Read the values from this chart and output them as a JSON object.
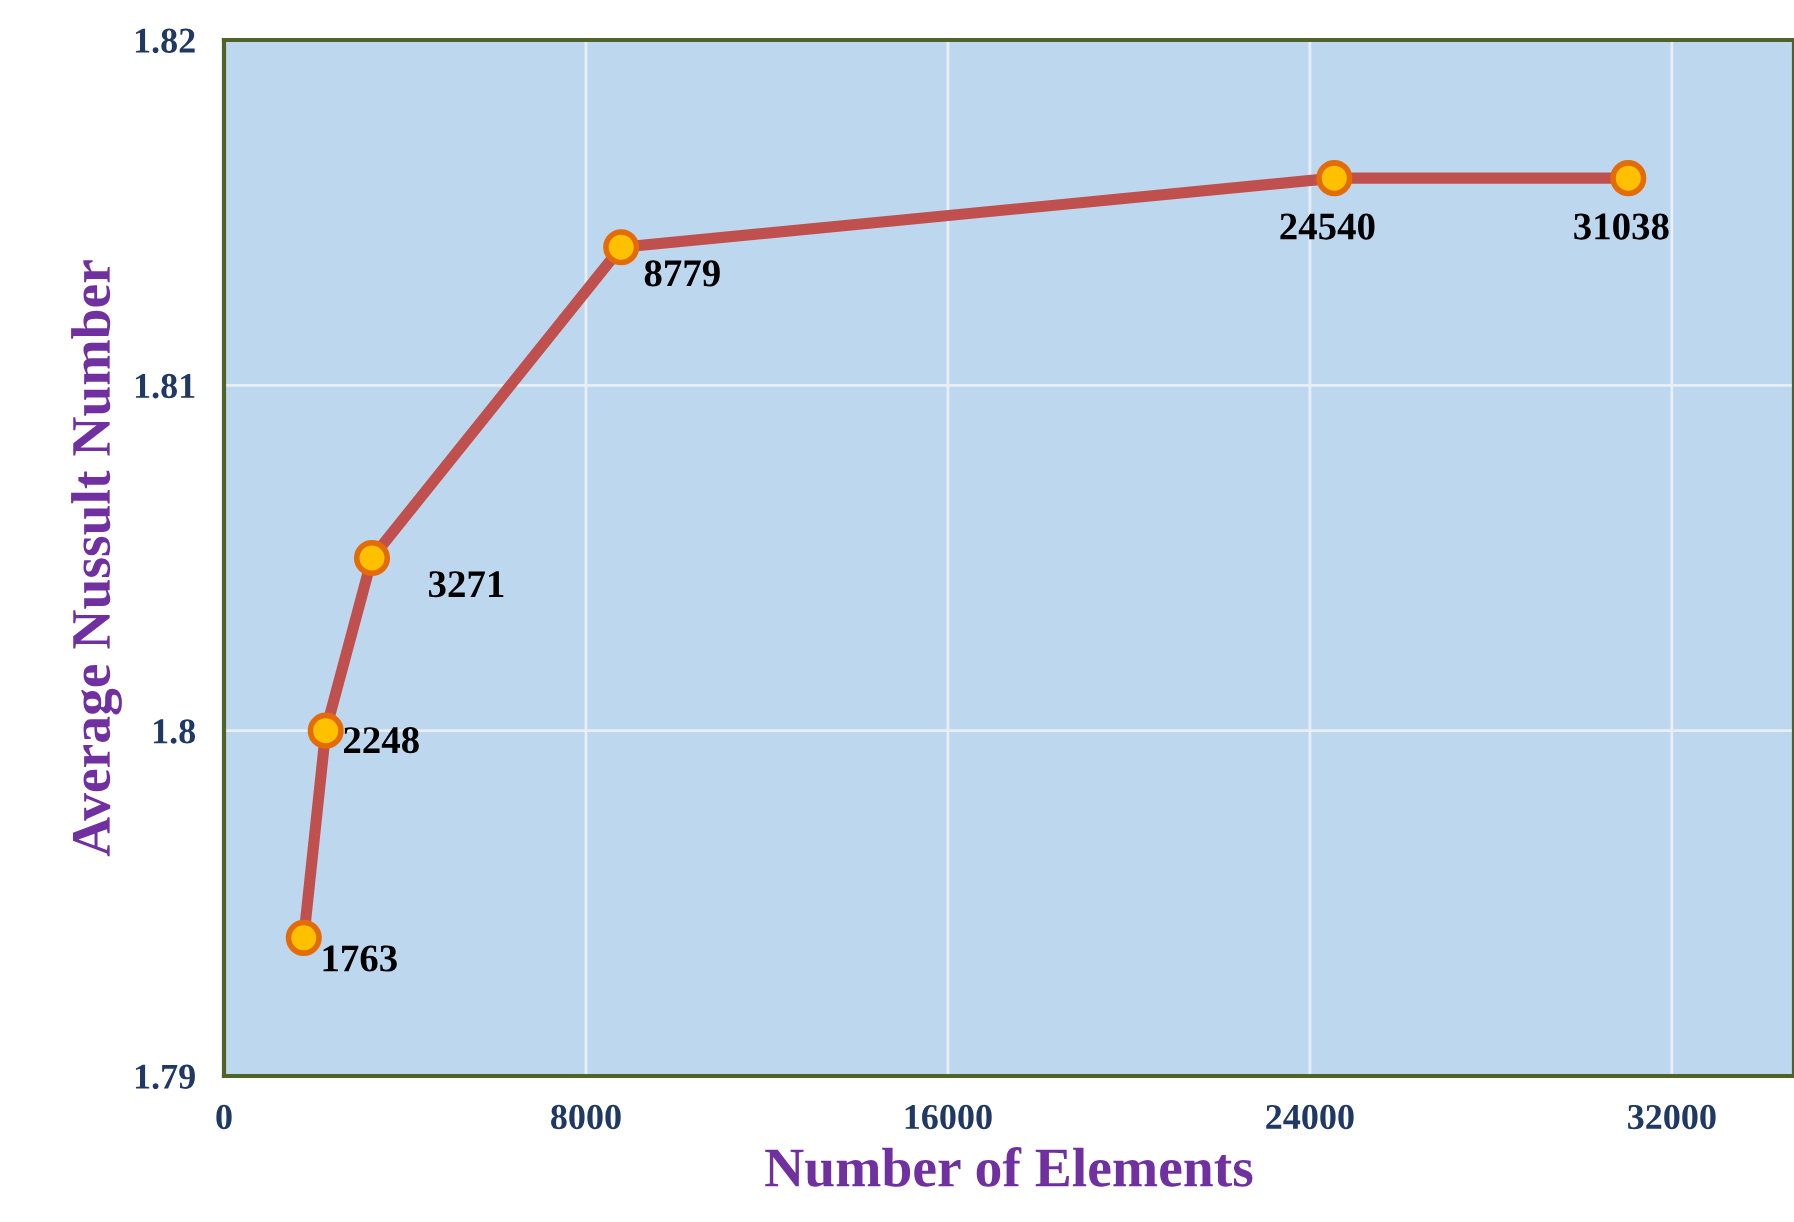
{
  "chart_data": {
    "type": "line",
    "xlabel": "Number of Elements",
    "ylabel": "Average Nussult Number",
    "x": [
      1763,
      2248,
      3271,
      8779,
      24540,
      31038
    ],
    "series": [
      {
        "color": "#c0504d",
        "values": [
          1.794,
          1.8,
          1.805,
          1.814,
          1.816,
          1.816
        ]
      }
    ],
    "xlim": [
      0,
      34700
    ],
    "xticks": [
      0,
      8000,
      16000,
      24000,
      32000
    ],
    "ylim": [
      1.79,
      1.82
    ],
    "yticks": [
      {
        "value": 1.79,
        "label": "1.79"
      },
      {
        "value": 1.8,
        "label": "1.8"
      },
      {
        "value": 1.81,
        "label": "1.81"
      },
      {
        "value": 1.82,
        "label": "1.82"
      }
    ],
    "grid": true,
    "marker": "circle",
    "line_style": "solid",
    "legend": false,
    "annotations": [
      {
        "text": "1763",
        "x": 1763,
        "y": 1.794
      },
      {
        "text": "2248",
        "x": 2248,
        "y": 1.8
      },
      {
        "text": "3271",
        "x": 3271,
        "y": 1.805
      },
      {
        "text": "8779",
        "x": 8779,
        "y": 1.814
      },
      {
        "text": "24540",
        "x": 24540,
        "y": 1.816
      },
      {
        "text": "31038",
        "x": 31038,
        "y": 1.816
      }
    ]
  }
}
